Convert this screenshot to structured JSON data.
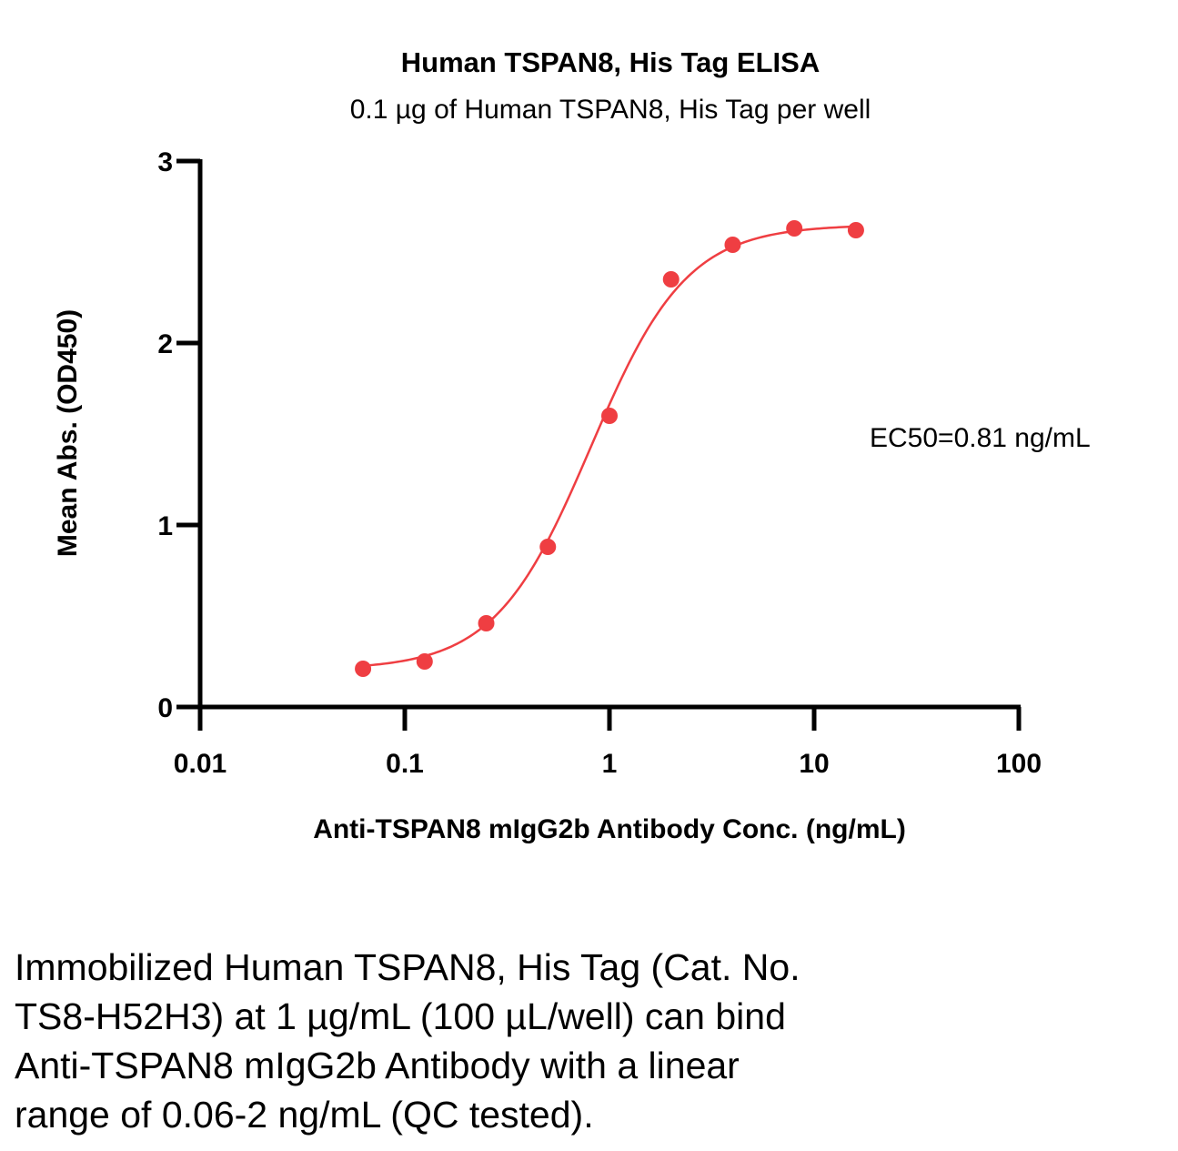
{
  "chart_data": {
    "type": "scatter",
    "title": "Human TSPAN8, His Tag ELISA",
    "subtitle": "0.1 µg of Human TSPAN8, His Tag per well",
    "xlabel": "Anti-TSPAN8 mIgG2b Antibody Conc. (ng/mL)",
    "ylabel": "Mean Abs. (OD450)",
    "xscale": "log",
    "xlim": [
      0.01,
      100
    ],
    "ylim": [
      0,
      3
    ],
    "xticks": [
      "0.01",
      "0.1",
      "1",
      "10",
      "100"
    ],
    "yticks": [
      "0",
      "1",
      "2",
      "3"
    ],
    "xtick_values": [
      0.01,
      0.1,
      1,
      10,
      100
    ],
    "ytick_values": [
      0,
      1,
      2,
      3
    ],
    "grid": false,
    "legend": "none",
    "series": [
      {
        "x": [
          0.0625,
          0.125,
          0.25,
          0.5,
          1,
          2,
          4,
          8,
          16
        ],
        "y": [
          0.21,
          0.25,
          0.46,
          0.88,
          1.6,
          2.35,
          2.54,
          2.63,
          2.62
        ],
        "color": "#ef3e42",
        "fit": "4PL sigmoidal curve"
      }
    ],
    "annotation": "EC50=0.81 ng/mL"
  },
  "caption": [
    "Immobilized Human TSPAN8, His Tag (Cat. No.",
    "TS8-H52H3) at 1 µg/mL (100 µL/well) can bind",
    "Anti-TSPAN8 mIgG2b Antibody with a linear",
    "range of 0.06-2 ng/mL (QC tested)."
  ]
}
